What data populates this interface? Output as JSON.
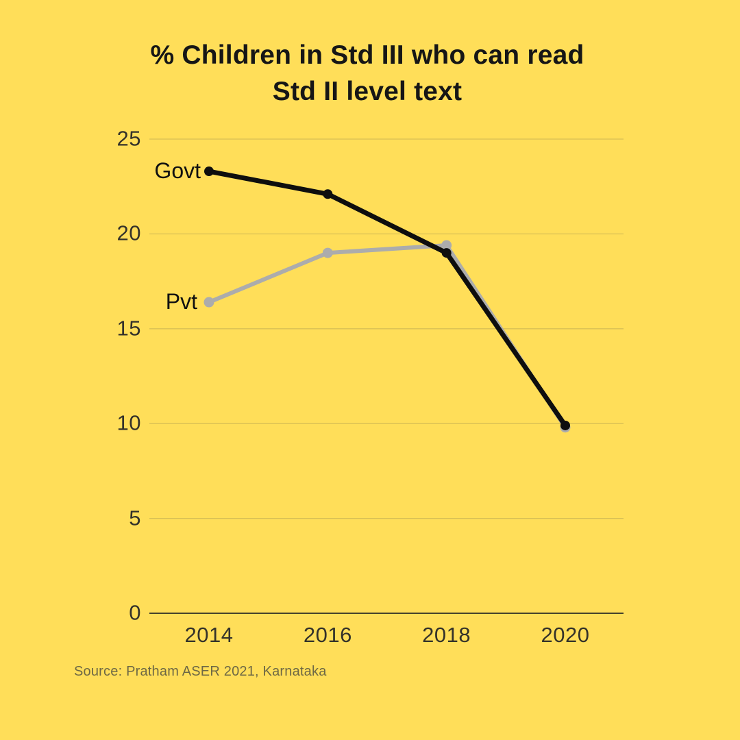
{
  "title": {
    "line1": "% Children in Std III who can read",
    "line2": "Std II level text"
  },
  "source": "Source: Pratham ASER 2021, Karnataka",
  "colors": {
    "background": "#FFDE59",
    "govt_line": "#0E0E0E",
    "pvt_line": "#ACACAC",
    "gridline": "#D8BF55",
    "axis_line": "#45412c",
    "tick_text": "#34322a",
    "title_text": "#161616",
    "source_text": "#6e6845"
  },
  "chart_data": {
    "type": "line",
    "x": [
      2014,
      2016,
      2018,
      2020
    ],
    "series": [
      {
        "name": "Govt",
        "values": [
          23.3,
          22.1,
          19.0,
          9.9
        ],
        "color_key": "govt_line",
        "line_width": 7,
        "point_radius": 7
      },
      {
        "name": "Pvt",
        "values": [
          16.4,
          19.0,
          19.4,
          9.8
        ],
        "color_key": "pvt_line",
        "line_width": 6,
        "point_radius": 7.5
      }
    ],
    "ylim": [
      0,
      25
    ],
    "yticks": [
      0,
      5,
      10,
      15,
      20,
      25
    ],
    "grid": true,
    "legend_position": "inline-left-of-first-point",
    "title": "% Children in Std III who can read Std II level text",
    "xlabel": "",
    "ylabel": ""
  }
}
